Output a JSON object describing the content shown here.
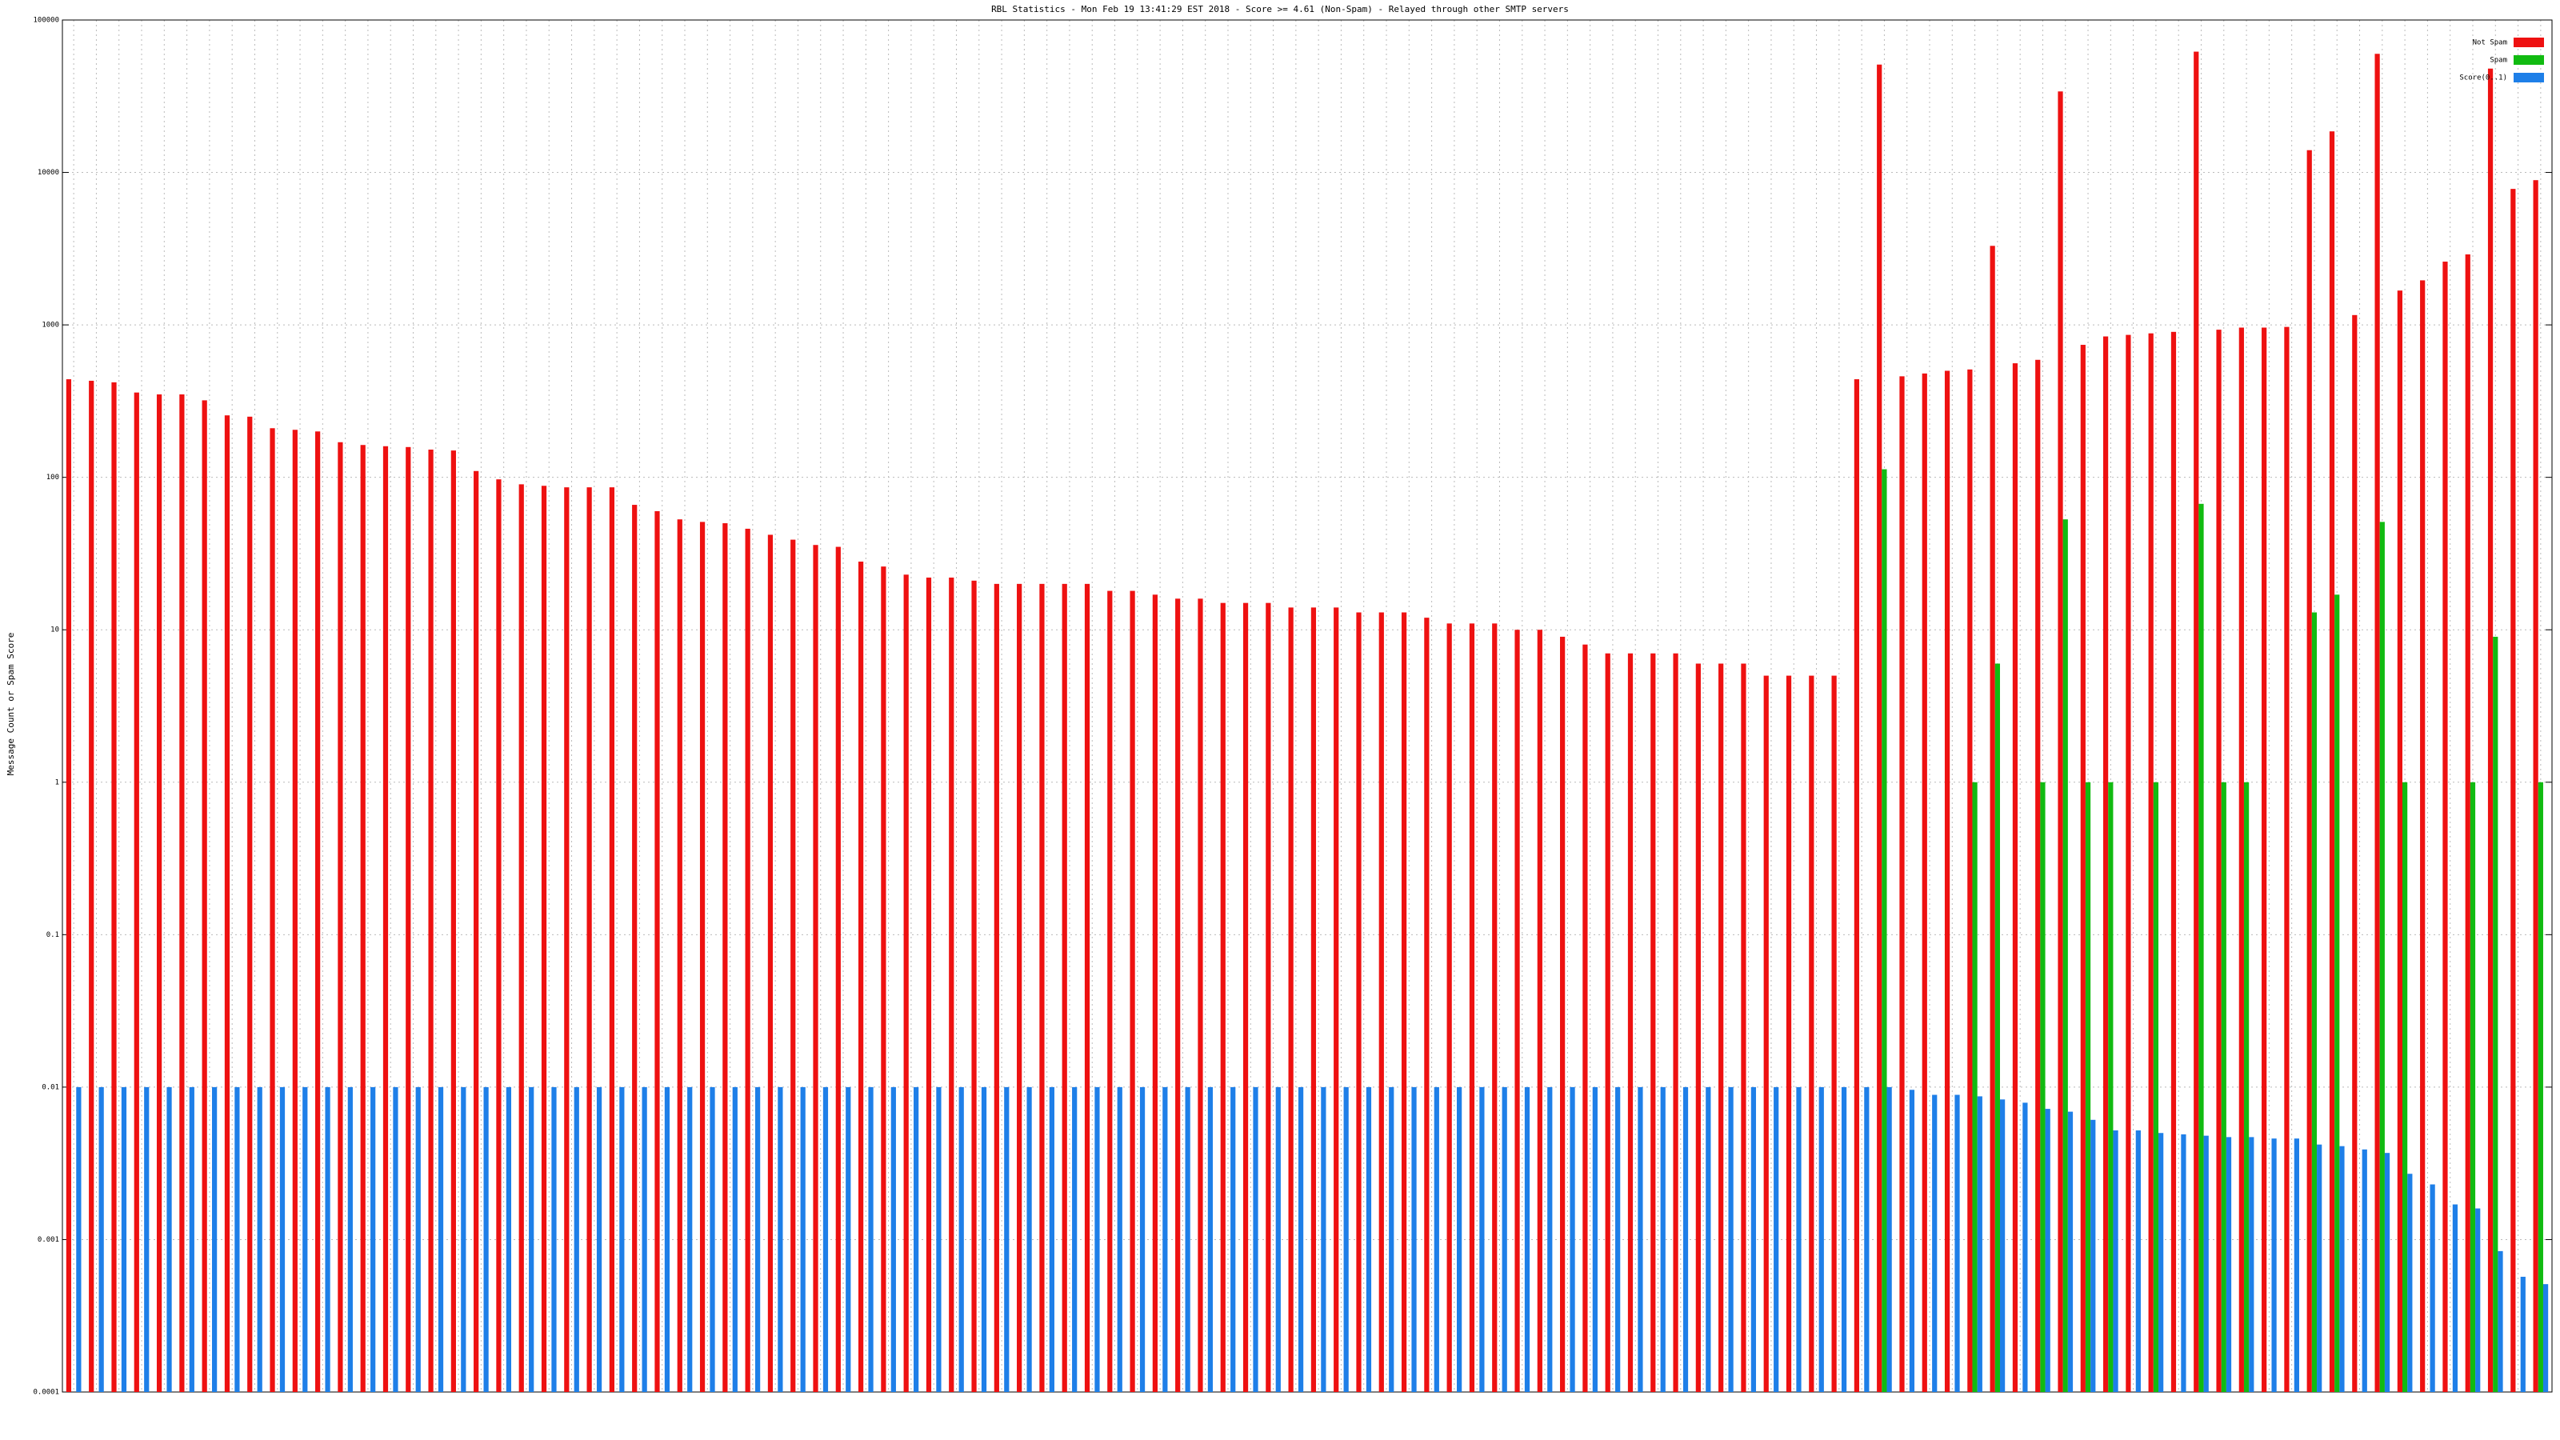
{
  "chart_data": {
    "type": "bar",
    "title": "RBL Statistics - Mon Feb 19 13:41:29 EST 2018 - Score >= 4.61 (Non-Spam) - Relayed through other SMTP servers",
    "y_label": "Message Count or Spam Score",
    "log_scale": true,
    "grid": true,
    "legend": "top-right",
    "categories": [
      null,
      null,
      null,
      null,
      null,
      null,
      null,
      null,
      null,
      null,
      null,
      null,
      null,
      null,
      null,
      null,
      null,
      null,
      null,
      null,
      null,
      null,
      null,
      null,
      null,
      null,
      null,
      null,
      null,
      null,
      null,
      null,
      null,
      null,
      null,
      null,
      null,
      null,
      null,
      null,
      null,
      null,
      null,
      null,
      null,
      null,
      null,
      null,
      null,
      null,
      null,
      null,
      null,
      null,
      null,
      null,
      null,
      null,
      null,
      null,
      null,
      null,
      null,
      null,
      null,
      null,
      null,
      null,
      null,
      null,
      null,
      null,
      null,
      null,
      null,
      null,
      null,
      null,
      null,
      null,
      null,
      null,
      null,
      null,
      null,
      null,
      null,
      null,
      null,
      null,
      null,
      null,
      null,
      null,
      null,
      null,
      null,
      null,
      null,
      null,
      null,
      null,
      null,
      null,
      null,
      null,
      null,
      null,
      null,
      null
    ],
    "ylim": [
      0.0001,
      100000
    ],
    "yticks": [
      0.0001,
      0.001,
      0.01,
      0.1,
      1,
      10,
      100,
      1000,
      10000,
      100000
    ],
    "series": [
      {
        "name": "Not Spam",
        "color": "#ee1111",
        "values": [
          440,
          430,
          420,
          360,
          350,
          350,
          320,
          255,
          250,
          210,
          205,
          200,
          170,
          163,
          160,
          158,
          152,
          150,
          110,
          97,
          90,
          88,
          86,
          86,
          86,
          66,
          60,
          53,
          51,
          50,
          46,
          42,
          39,
          36,
          35,
          28,
          26,
          23,
          22,
          22,
          21,
          20,
          20,
          20,
          20,
          20,
          18,
          18,
          17,
          16,
          16,
          15,
          15,
          15,
          14,
          14,
          14,
          13,
          13,
          13,
          12,
          11,
          11,
          11,
          10,
          10,
          9,
          8,
          7,
          7,
          7,
          7,
          6,
          6,
          6,
          5,
          5,
          5,
          5,
          440,
          51000,
          460,
          480,
          500,
          510,
          3300,
          560,
          590,
          34000,
          740,
          840,
          860,
          880,
          900,
          62000,
          930,
          960,
          960,
          970,
          14000,
          18600,
          1160,
          60000,
          1680,
          1960,
          2600,
          2900,
          48000,
          7800,
          8900
        ]
      },
      {
        "name": "Spam",
        "color": "#11bb11",
        "values": [
          null,
          null,
          null,
          null,
          null,
          null,
          null,
          null,
          null,
          null,
          null,
          null,
          null,
          null,
          null,
          null,
          null,
          null,
          null,
          null,
          null,
          null,
          null,
          null,
          null,
          null,
          null,
          null,
          null,
          null,
          null,
          null,
          null,
          null,
          null,
          null,
          null,
          null,
          null,
          null,
          null,
          null,
          null,
          null,
          null,
          null,
          null,
          null,
          null,
          null,
          null,
          null,
          null,
          null,
          null,
          null,
          null,
          null,
          null,
          null,
          null,
          null,
          null,
          null,
          null,
          null,
          null,
          null,
          null,
          null,
          null,
          null,
          null,
          null,
          null,
          null,
          null,
          null,
          null,
          null,
          113,
          null,
          null,
          null,
          1,
          6,
          null,
          1,
          53,
          1,
          1,
          null,
          1,
          null,
          67,
          1,
          1,
          null,
          null,
          13,
          17,
          null,
          51,
          1,
          null,
          null,
          1,
          9,
          null,
          1
        ]
      },
      {
        "name": "Score(0..1)",
        "color": "#1e7fe8",
        "values": [
          0.01,
          0.01,
          0.01,
          0.01,
          0.01,
          0.01,
          0.01,
          0.01,
          0.01,
          0.01,
          0.01,
          0.01,
          0.01,
          0.01,
          0.01,
          0.01,
          0.01,
          0.01,
          0.01,
          0.01,
          0.01,
          0.01,
          0.01,
          0.01,
          0.01,
          0.01,
          0.01,
          0.01,
          0.01,
          0.01,
          0.01,
          0.01,
          0.01,
          0.01,
          0.01,
          0.01,
          0.01,
          0.01,
          0.01,
          0.01,
          0.01,
          0.01,
          0.01,
          0.01,
          0.01,
          0.01,
          0.01,
          0.01,
          0.01,
          0.01,
          0.01,
          0.01,
          0.01,
          0.01,
          0.01,
          0.01,
          0.01,
          0.01,
          0.01,
          0.01,
          0.01,
          0.01,
          0.01,
          0.01,
          0.01,
          0.01,
          0.01,
          0.01,
          0.01,
          0.01,
          0.01,
          0.01,
          0.01,
          0.01,
          0.01,
          0.01,
          0.01,
          0.01,
          0.01,
          0.01,
          0.01,
          0.0096,
          0.0089,
          0.0089,
          0.0087,
          0.0083,
          0.0079,
          0.0072,
          0.0069,
          0.0061,
          0.0052,
          0.0052,
          0.005,
          0.0049,
          0.0048,
          0.0047,
          0.0047,
          0.0046,
          0.0046,
          0.0042,
          0.0041,
          0.0039,
          0.0037,
          0.0027,
          0.0023,
          0.0017,
          0.0016,
          0.00084,
          0.00057,
          0.00051
        ]
      }
    ]
  }
}
